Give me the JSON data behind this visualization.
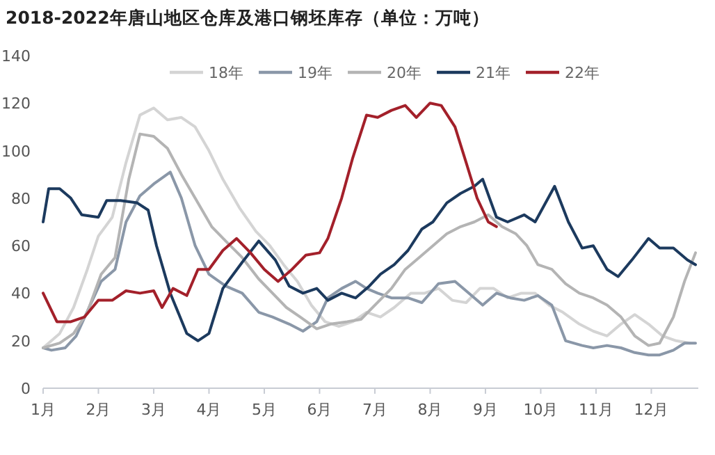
{
  "chart_data": {
    "type": "line",
    "title": "2018-2022年唐山地区仓库及港口钢坯库存（单位：万吨）",
    "xlim": [
      1,
      12.85
    ],
    "ylim": [
      0,
      140
    ],
    "yticks": [
      0,
      20,
      40,
      60,
      80,
      100,
      120,
      140
    ],
    "xticks": [
      {
        "value": 1,
        "label": "1月"
      },
      {
        "value": 2,
        "label": "2月"
      },
      {
        "value": 3,
        "label": "3月"
      },
      {
        "value": 4,
        "label": "4月"
      },
      {
        "value": 5,
        "label": "5月"
      },
      {
        "value": 6,
        "label": "6月"
      },
      {
        "value": 7,
        "label": "7月"
      },
      {
        "value": 8,
        "label": "8月"
      },
      {
        "value": 9,
        "label": "9月"
      },
      {
        "value": 10,
        "label": "10月"
      },
      {
        "value": 11,
        "label": "11月"
      },
      {
        "value": 12,
        "label": "12月"
      }
    ],
    "grid": false,
    "legend": "top",
    "marker": "none",
    "line_style": "solid",
    "series": [
      {
        "name": "18年",
        "color": "#d4d4d4",
        "x": [
          1,
          1.3,
          1.55,
          1.8,
          2,
          2.25,
          2.5,
          2.75,
          3,
          3.25,
          3.5,
          3.75,
          4,
          4.25,
          4.55,
          4.85,
          5.1,
          5.35,
          5.6,
          5.85,
          6.1,
          6.35,
          6.6,
          6.85,
          7.1,
          7.35,
          7.65,
          7.9,
          8.15,
          8.4,
          8.65,
          8.9,
          9.15,
          9.4,
          9.65,
          9.9,
          10.15,
          10.4,
          10.7,
          10.95,
          11.2,
          11.45,
          11.7,
          11.95,
          12.2,
          12.45,
          12.7
        ],
        "values": [
          17,
          23,
          34,
          50,
          64,
          72,
          95,
          115,
          118,
          113,
          114,
          110,
          100,
          88,
          76,
          66,
          60,
          52,
          45,
          35,
          28,
          26,
          28,
          32,
          30,
          34,
          40,
          40,
          42,
          37,
          36,
          42,
          42,
          38,
          40,
          40,
          35,
          32,
          27,
          24,
          22,
          27,
          31,
          27,
          22,
          20,
          19
        ]
      },
      {
        "name": "19年",
        "color": "#8a97a8",
        "x": [
          1,
          1.15,
          1.4,
          1.6,
          1.85,
          2.05,
          2.3,
          2.5,
          2.75,
          3,
          3.3,
          3.5,
          3.75,
          4,
          4.3,
          4.6,
          4.9,
          5.15,
          5.45,
          5.7,
          5.95,
          6.15,
          6.4,
          6.65,
          6.85,
          7.05,
          7.3,
          7.6,
          7.85,
          8.15,
          8.45,
          8.7,
          8.95,
          9.2,
          9.45,
          9.7,
          9.95,
          10.2,
          10.45,
          10.75,
          10.95,
          11.2,
          11.45,
          11.7,
          11.95,
          12.15,
          12.4,
          12.6,
          12.8
        ],
        "values": [
          17,
          16,
          17,
          22,
          35,
          45,
          50,
          70,
          81,
          86,
          91,
          80,
          60,
          48,
          43,
          40,
          32,
          30,
          27,
          24,
          28,
          38,
          42,
          45,
          42,
          40,
          38,
          38,
          36,
          44,
          45,
          40,
          35,
          40,
          38,
          37,
          39,
          35,
          20,
          18,
          17,
          18,
          17,
          15,
          14,
          14,
          16,
          19,
          19
        ]
      },
      {
        "name": "20年",
        "color": "#b4b4b4",
        "x": [
          1,
          1.3,
          1.55,
          1.8,
          2.05,
          2.3,
          2.55,
          2.75,
          3,
          3.25,
          3.5,
          3.75,
          4.05,
          4.3,
          4.6,
          4.9,
          5.15,
          5.4,
          5.65,
          5.95,
          6.2,
          6.5,
          6.75,
          7,
          7.3,
          7.55,
          7.8,
          8.05,
          8.3,
          8.55,
          8.8,
          9.05,
          9.3,
          9.55,
          9.75,
          9.95,
          10.2,
          10.45,
          10.7,
          10.95,
          11.2,
          11.45,
          11.7,
          11.95,
          12.15,
          12.4,
          12.6,
          12.8
        ],
        "values": [
          17,
          19,
          23,
          32,
          48,
          55,
          88,
          107,
          106,
          101,
          90,
          80,
          68,
          62,
          55,
          46,
          40,
          34,
          30,
          25,
          27,
          28,
          29,
          35,
          42,
          50,
          55,
          60,
          65,
          68,
          70,
          73,
          68,
          65,
          60,
          52,
          50,
          44,
          40,
          38,
          35,
          30,
          22,
          18,
          19,
          30,
          45,
          57
        ]
      },
      {
        "name": "21年",
        "color": "#1c3a5e",
        "x": [
          1,
          1.1,
          1.3,
          1.5,
          1.7,
          2,
          2.15,
          2.4,
          2.7,
          2.9,
          3.05,
          3.3,
          3.6,
          3.8,
          4,
          4.25,
          4.6,
          4.9,
          5.2,
          5.45,
          5.7,
          5.95,
          6.15,
          6.4,
          6.65,
          6.9,
          7.1,
          7.35,
          7.6,
          7.85,
          8.05,
          8.3,
          8.55,
          8.8,
          8.95,
          9.2,
          9.4,
          9.7,
          9.9,
          10.25,
          10.5,
          10.75,
          10.95,
          11.2,
          11.4,
          11.65,
          11.95,
          12.15,
          12.4,
          12.65,
          12.8
        ],
        "values": [
          70,
          84,
          84,
          80,
          73,
          72,
          79,
          79,
          78,
          75,
          60,
          40,
          23,
          20,
          23,
          42,
          53,
          62,
          54,
          43,
          40,
          42,
          37,
          40,
          38,
          43,
          48,
          52,
          58,
          67,
          70,
          78,
          82,
          85,
          88,
          72,
          70,
          73,
          70,
          85,
          70,
          59,
          60,
          50,
          47,
          54,
          63,
          59,
          59,
          54,
          52
        ]
      },
      {
        "name": "22年",
        "color": "#a3202a",
        "x": [
          1,
          1.25,
          1.5,
          1.75,
          2,
          2.25,
          2.5,
          2.75,
          3,
          3.15,
          3.35,
          3.6,
          3.8,
          4,
          4.25,
          4.5,
          4.75,
          5,
          5.25,
          5.5,
          5.75,
          6,
          6.15,
          6.4,
          6.6,
          6.85,
          7.05,
          7.3,
          7.55,
          7.75,
          8,
          8.2,
          8.45,
          8.65,
          8.85,
          9.05,
          9.2
        ],
        "values": [
          40,
          28,
          28,
          30,
          37,
          37,
          41,
          40,
          41,
          34,
          42,
          39,
          50,
          50,
          58,
          63,
          57,
          50,
          45,
          50,
          56,
          57,
          63,
          80,
          97,
          115,
          114,
          117,
          119,
          114,
          120,
          119,
          110,
          95,
          80,
          70,
          68
        ]
      }
    ]
  }
}
